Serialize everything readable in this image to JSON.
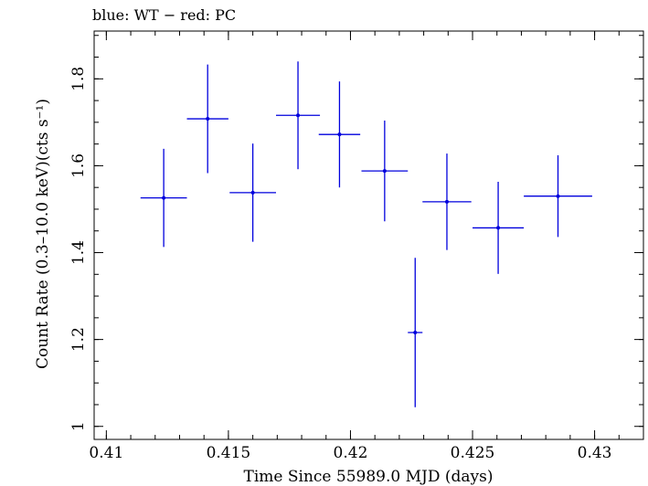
{
  "chart_data": {
    "type": "scatter",
    "title": "blue: WT − red: PC",
    "xlabel": "Time Since 55989.0 MJD (days)",
    "ylabel": "Count Rate (0.3–10.0 keV)(cts s⁻¹)",
    "xlim": [
      0.4095,
      0.432
    ],
    "ylim": [
      0.97,
      1.91
    ],
    "x_ticks": [
      {
        "value": 0.41,
        "label": "0.41"
      },
      {
        "value": 0.415,
        "label": "0.415"
      },
      {
        "value": 0.42,
        "label": "0.42"
      },
      {
        "value": 0.425,
        "label": "0.425"
      },
      {
        "value": 0.43,
        "label": "0.43"
      }
    ],
    "y_ticks": [
      {
        "value": 1.0,
        "label": "1"
      },
      {
        "value": 1.2,
        "label": "1.2"
      },
      {
        "value": 1.4,
        "label": "1.4"
      },
      {
        "value": 1.6,
        "label": "1.6"
      },
      {
        "value": 1.8,
        "label": "1.8"
      }
    ],
    "x_minor_step": 0.001,
    "y_minor_step": 0.05,
    "grid": false,
    "series": [
      {
        "color": "#0000dd",
        "points": [
          {
            "x": 0.41235,
            "y": 1.526,
            "xerr": 0.00095,
            "yerr": 0.113
          },
          {
            "x": 0.41415,
            "y": 1.708,
            "xerr": 0.00085,
            "yerr": 0.125
          },
          {
            "x": 0.416,
            "y": 1.538,
            "xerr": 0.00095,
            "yerr": 0.113
          },
          {
            "x": 0.41785,
            "y": 1.716,
            "xerr": 0.0009,
            "yerr": 0.124
          },
          {
            "x": 0.41955,
            "y": 1.672,
            "xerr": 0.00085,
            "yerr": 0.122
          },
          {
            "x": 0.4214,
            "y": 1.588,
            "xerr": 0.00095,
            "yerr": 0.116
          },
          {
            "x": 0.42265,
            "y": 1.216,
            "xerr": 0.0003,
            "yerr": 0.172
          },
          {
            "x": 0.42395,
            "y": 1.517,
            "xerr": 0.001,
            "yerr": 0.111
          },
          {
            "x": 0.42605,
            "y": 1.457,
            "xerr": 0.00105,
            "yerr": 0.106
          },
          {
            "x": 0.4285,
            "y": 1.53,
            "xerr": 0.0014,
            "yerr": 0.094
          }
        ]
      }
    ]
  }
}
